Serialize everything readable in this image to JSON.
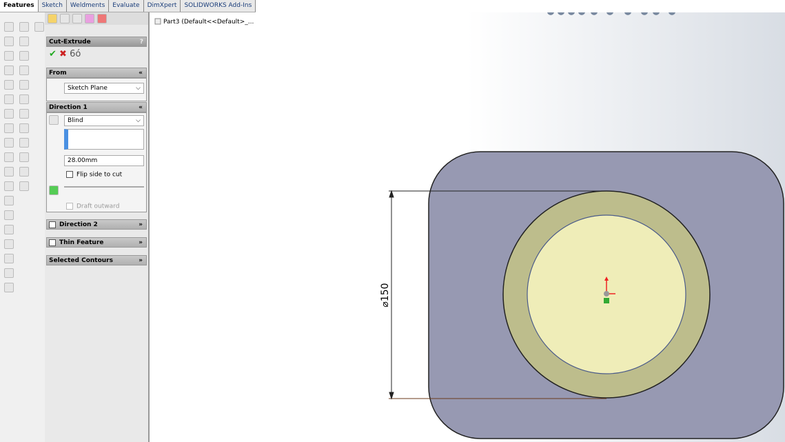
{
  "toolbar": {
    "tabs": [
      "Features",
      "Sketch",
      "Weldments",
      "Evaluate",
      "DimXpert",
      "SOLIDWORKS Add-Ins"
    ]
  },
  "feature_tree": {
    "root": "Part3  (Default<<Default>_..."
  },
  "property_manager": {
    "title": "Cut-Extrude",
    "help": "?",
    "from": {
      "title": "From",
      "start": "Sketch Plane"
    },
    "direction1": {
      "title": "Direction 1",
      "end_condition": "Blind",
      "depth": "28.00mm",
      "flip": "Flip side to cut",
      "draft": "Draft outward"
    },
    "direction2": {
      "title": "Direction 2"
    },
    "thin": {
      "title": "Thin Feature"
    },
    "contours": {
      "title": "Selected Contours"
    }
  },
  "viewport": {
    "dimension": "⌀150"
  }
}
